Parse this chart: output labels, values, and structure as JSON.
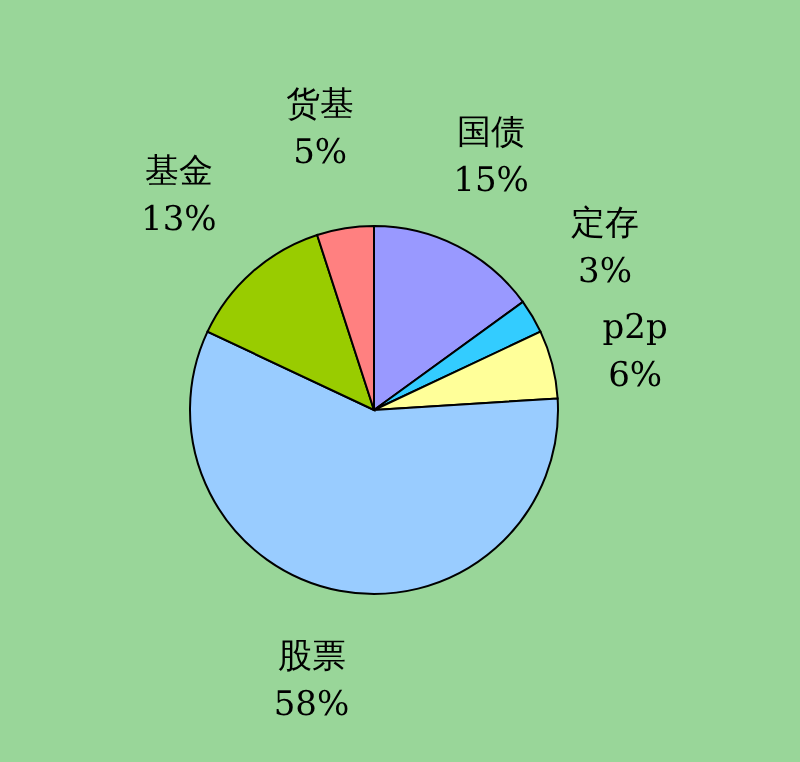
{
  "chart_data": {
    "type": "pie",
    "categories": [
      "国债",
      "定存",
      "p2p",
      "股票",
      "基金",
      "货基"
    ],
    "values": [
      15,
      3,
      6,
      58,
      13,
      5
    ],
    "value_labels": [
      "15%",
      "3%",
      "6%",
      "58%",
      "13%",
      "5%"
    ],
    "colors": [
      "#9999ff",
      "#33ccff",
      "#ffff99",
      "#99ccff",
      "#99cc00",
      "#ff8080"
    ],
    "legend": false
  }
}
